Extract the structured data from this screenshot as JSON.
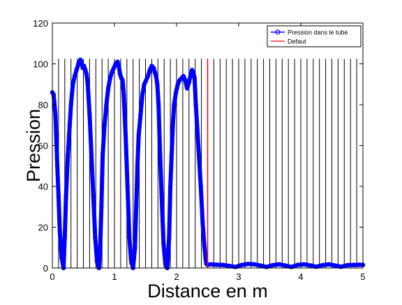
{
  "chart_data": {
    "type": "line",
    "title": "",
    "xlabel": "Distance en m",
    "ylabel": "Pression",
    "xlim": [
      0,
      5
    ],
    "ylim": [
      0,
      120
    ],
    "xticks": [
      0,
      1,
      2,
      3,
      4,
      5
    ],
    "yticks": [
      0,
      20,
      40,
      60,
      80,
      100,
      120
    ],
    "grid": false,
    "legend_position": "top-right",
    "series": [
      {
        "name": "Pression dans le tube",
        "color": "#0000ff",
        "marker": "circle",
        "x": [
          0.0,
          0.02,
          0.05,
          0.08,
          0.1,
          0.12,
          0.15,
          0.18,
          0.2,
          0.22,
          0.25,
          0.28,
          0.3,
          0.33,
          0.36,
          0.39,
          0.42,
          0.45,
          0.47,
          0.49,
          0.51,
          0.53,
          0.55,
          0.57,
          0.6,
          0.63,
          0.66,
          0.69,
          0.72,
          0.75,
          0.77,
          0.79,
          0.81,
          0.84,
          0.87,
          0.9,
          0.93,
          0.96,
          0.99,
          1.02,
          1.05,
          1.07,
          1.09,
          1.11,
          1.13,
          1.15,
          1.18,
          1.21,
          1.24,
          1.27,
          1.3,
          1.33,
          1.35,
          1.37,
          1.39,
          1.42,
          1.45,
          1.48,
          1.51,
          1.54,
          1.57,
          1.6,
          1.63,
          1.65,
          1.67,
          1.69,
          1.71,
          1.73,
          1.76,
          1.79,
          1.82,
          1.85,
          1.88,
          1.9,
          1.92,
          1.94,
          1.96,
          1.99,
          2.02,
          2.05,
          2.08,
          2.11,
          2.14,
          2.17,
          2.2,
          2.23,
          2.25,
          2.27,
          2.29,
          2.31,
          2.33,
          2.36,
          2.39,
          2.42,
          2.45,
          2.47,
          2.48,
          2.5,
          2.55,
          2.65,
          2.75,
          2.85,
          2.95,
          3.05,
          3.15,
          3.25,
          3.35,
          3.45,
          3.55,
          3.65,
          3.75,
          3.85,
          3.95,
          4.05,
          4.15,
          4.25,
          4.35,
          4.45,
          4.55,
          4.65,
          4.75,
          4.85,
          4.95,
          5.0
        ],
        "y": [
          86,
          85,
          75,
          50,
          35,
          18,
          5,
          0,
          15,
          35,
          55,
          70,
          80,
          90,
          94,
          97,
          100,
          102,
          101,
          98,
          99,
          97,
          95,
          90,
          75,
          55,
          35,
          15,
          3,
          0,
          10,
          30,
          55,
          70,
          80,
          88,
          93,
          96,
          98,
          100,
          101,
          99,
          95,
          93,
          92,
          85,
          65,
          40,
          15,
          3,
          0,
          10,
          30,
          50,
          65,
          75,
          85,
          90,
          92,
          94,
          97,
          99,
          98,
          96,
          94,
          90,
          80,
          60,
          35,
          12,
          2,
          0,
          15,
          40,
          55,
          70,
          80,
          86,
          90,
          92,
          93,
          94,
          92,
          88,
          91,
          95,
          97,
          96,
          93,
          80,
          70,
          55,
          40,
          22,
          10,
          4,
          2,
          1.5,
          1.8,
          1.6,
          1.5,
          1.0,
          0.5,
          1.5,
          2.0,
          1.8,
          1.2,
          0.5,
          1.4,
          1.8,
          1.2,
          0.5,
          1.5,
          1.8,
          1.3,
          0.6,
          1.4,
          1.8,
          1.2,
          0.6,
          1.4,
          1.5,
          1.6,
          1.5
        ]
      },
      {
        "name": "Defaut",
        "color": "#ff0000",
        "marker": "none",
        "x": [
          2.5,
          2.5
        ],
        "y": [
          0,
          102.5
        ]
      }
    ],
    "reference_lines": {
      "type": "vertical",
      "color": "#000000",
      "x_start": 0.1,
      "x_step": 0.1,
      "count": 50,
      "y_top": 102.5
    }
  }
}
